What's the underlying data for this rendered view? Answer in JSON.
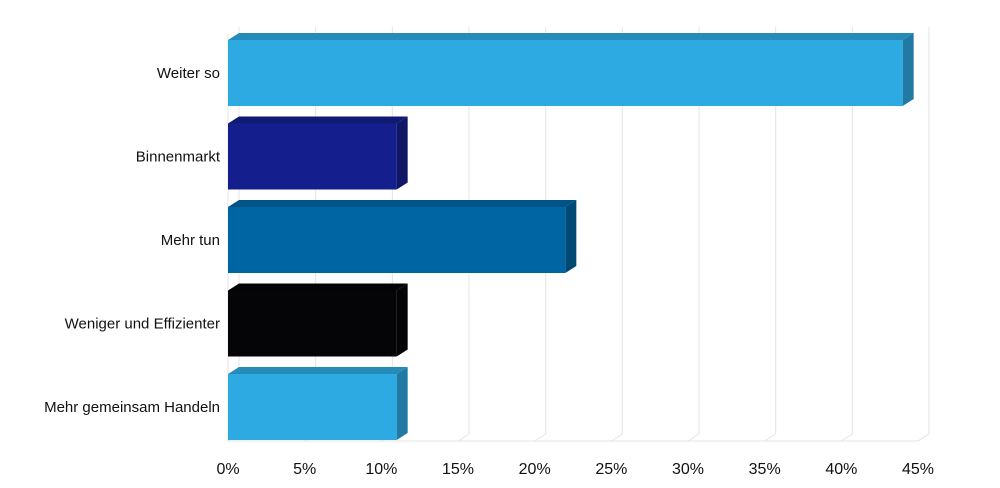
{
  "chart_data": {
    "type": "bar",
    "orientation": "horizontal",
    "categories": [
      "Weiter so",
      "Binnenmarkt",
      "Mehr tun",
      "Weniger und Effizienter",
      "Mehr gemeinsam Handeln"
    ],
    "values": [
      44,
      11,
      22,
      11,
      11
    ],
    "colors": [
      "#2eaae2",
      "#141e8c",
      "#0065a3",
      "#050508",
      "#2eaae2"
    ],
    "title": "",
    "xlabel": "",
    "ylabel": "",
    "xlim": [
      0,
      45
    ],
    "x_ticks": [
      0,
      5,
      10,
      15,
      20,
      25,
      30,
      35,
      40,
      45
    ],
    "x_tick_labels": [
      "0%",
      "5%",
      "10%",
      "15%",
      "20%",
      "25%",
      "30%",
      "35%",
      "40%",
      "45%"
    ],
    "grid": true,
    "legend": "none",
    "style": "3d"
  }
}
